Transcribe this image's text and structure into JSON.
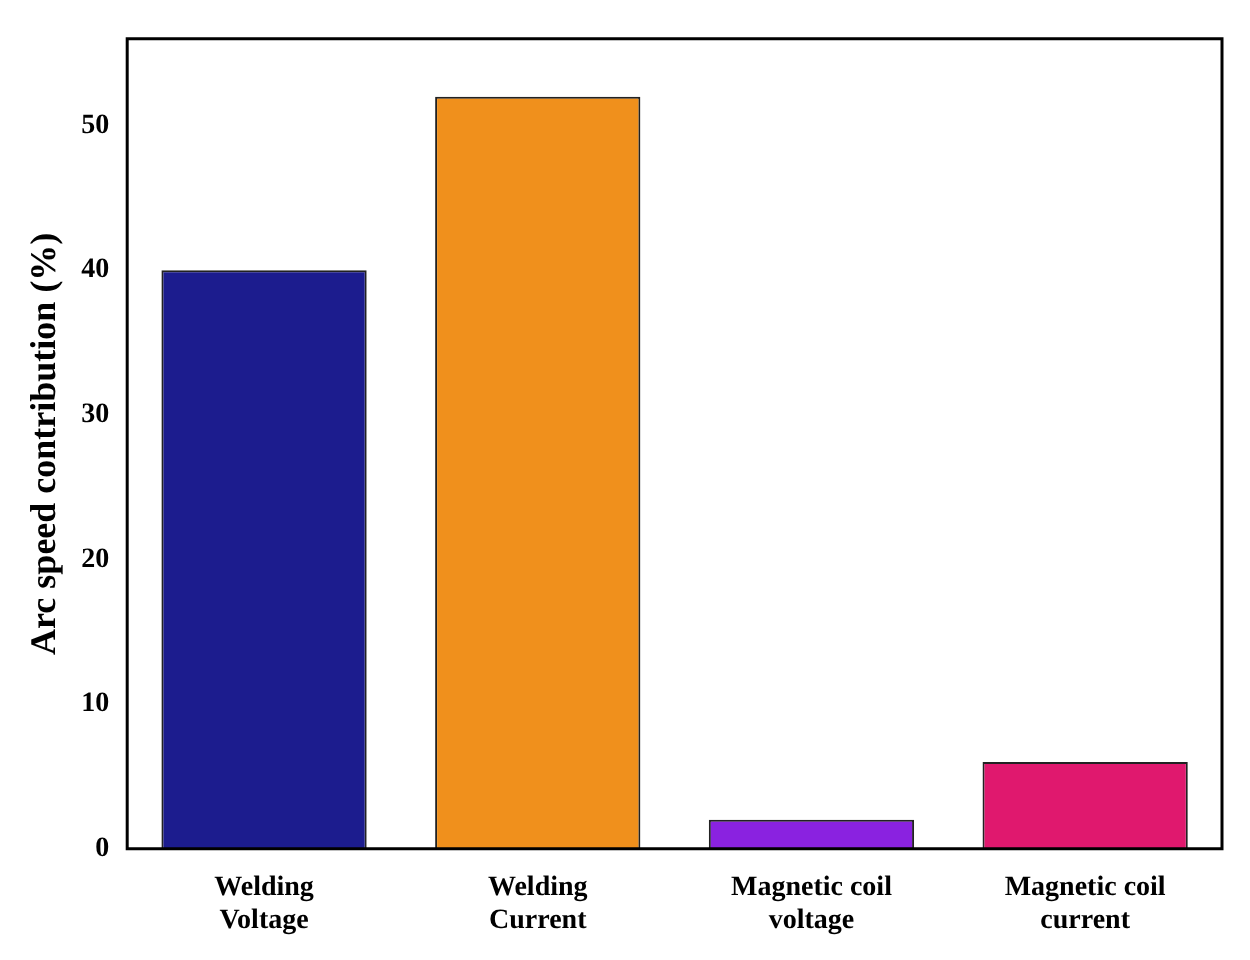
{
  "chart_data": {
    "type": "bar",
    "ylabel": "Arc speed contribution (%)",
    "categories": [
      "Welding Voltage",
      "Welding Current",
      "Magnetic coil voltage",
      "Magnetic coil current"
    ],
    "values": [
      40,
      52,
      2,
      6
    ],
    "colors": [
      "#1c1c8e",
      "#f0901c",
      "#8a22e0",
      "#e0186e"
    ],
    "ylim": [
      0,
      56
    ],
    "yticks": [
      0,
      10,
      20,
      30,
      40,
      50
    ],
    "grid": false
  }
}
